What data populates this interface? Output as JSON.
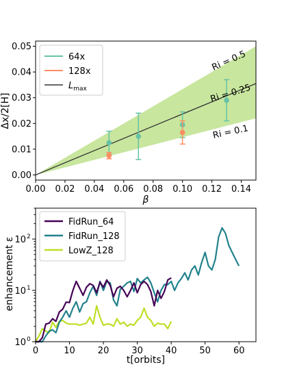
{
  "chart_data": [
    {
      "type": "scatter",
      "xlabel": "β",
      "ylabel": "Δx/2[H]",
      "xlim": [
        0.0,
        0.15
      ],
      "ylim": [
        -0.002,
        0.052
      ],
      "xticks": [
        "0.00",
        "0.02",
        "0.04",
        "0.06",
        "0.08",
        "0.10",
        "0.12",
        "0.14"
      ],
      "yticks": [
        "0.00",
        "0.01",
        "0.02",
        "0.03",
        "0.04",
        "0.05"
      ],
      "grid": false,
      "legend_position": "top-left",
      "legend": [
        "64x",
        "128x",
        "L_max"
      ],
      "legend_main_3": "L",
      "legend_sub_3": "max",
      "annotations": [
        "Ri = 0.5",
        "Ri = 0.25",
        "Ri = 0.1"
      ],
      "band": {
        "x": [
          0.0,
          0.15
        ],
        "lower": [
          0.0,
          0.022
        ],
        "upper": [
          0.0,
          0.05
        ],
        "color": "#b5de7e"
      },
      "line": {
        "x": [
          0.0,
          0.15
        ],
        "y": [
          0.0,
          0.0355
        ],
        "color": "#333333"
      },
      "series": [
        {
          "name": "64x",
          "color": "#66c2a5",
          "points": [
            {
              "x": 0.05,
              "y": 0.0125,
              "err": 0.0045
            },
            {
              "x": 0.07,
              "y": 0.015,
              "err": 0.009
            },
            {
              "x": 0.1,
              "y": 0.0195,
              "err": 0.005
            },
            {
              "x": 0.13,
              "y": 0.029,
              "err": 0.008
            }
          ]
        },
        {
          "name": "128x",
          "color": "#fc8d62",
          "points": [
            {
              "x": 0.05,
              "y": 0.0075,
              "err": 0.0012
            },
            {
              "x": 0.1,
              "y": 0.0165,
              "err": 0.0045
            }
          ]
        }
      ]
    },
    {
      "type": "line",
      "xlabel": "t[orbits]",
      "ylabel": "enhancement ε",
      "xlim": [
        0,
        65
      ],
      "ylim": [
        1,
        400
      ],
      "yscale": "log",
      "xticks": [
        "0",
        "10",
        "20",
        "30",
        "40",
        "50",
        "60"
      ],
      "ytick_base": [
        "10",
        "10",
        "10"
      ],
      "ytick_exp": [
        "0",
        "1",
        "2"
      ],
      "grid": false,
      "legend_position": "top-left",
      "series": [
        {
          "name": "FidRun_64",
          "color": "#440154",
          "x": [
            0,
            1,
            2,
            3,
            4,
            5,
            6,
            7,
            8,
            9,
            10,
            11,
            12,
            13,
            14,
            15,
            16,
            17,
            18,
            19,
            20,
            21,
            22,
            23,
            24,
            25,
            26,
            27,
            28,
            29,
            30,
            31,
            32,
            33,
            34,
            35,
            36,
            37,
            38,
            39,
            40
          ],
          "y": [
            1.0,
            1.0,
            1.2,
            2.2,
            2.3,
            2.8,
            2.5,
            3.8,
            4.3,
            5.9,
            5.8,
            10.0,
            15.0,
            11.0,
            8.0,
            11.5,
            13.5,
            12.5,
            9.0,
            14.5,
            11.5,
            16.0,
            12.5,
            7.5,
            11.0,
            12.0,
            10.0,
            7.5,
            10.0,
            14.0,
            9.0,
            13.0,
            15.0,
            13.0,
            9.5,
            5.0,
            10.0,
            7.0,
            9.5,
            16.0,
            17.5
          ]
        },
        {
          "name": "FidRun_128",
          "color": "#21818c",
          "x": [
            0,
            1,
            2,
            3,
            4,
            5,
            6,
            7,
            8,
            9,
            10,
            11,
            12,
            13,
            14,
            15,
            16,
            17,
            18,
            19,
            20,
            21,
            22,
            23,
            24,
            25,
            26,
            27,
            28,
            29,
            30,
            31,
            32,
            33,
            34,
            35,
            36,
            37,
            38,
            39,
            40,
            41,
            42,
            43,
            44,
            45,
            46,
            47,
            48,
            49,
            50,
            51,
            52,
            53,
            54,
            55,
            56,
            57,
            58,
            59,
            60
          ],
          "y": [
            1.0,
            1.0,
            1.0,
            1.3,
            1.6,
            1.7,
            1.5,
            2.4,
            3.0,
            4.0,
            3.0,
            4.5,
            6.0,
            3.8,
            5.5,
            6.0,
            9.0,
            12.0,
            8.0,
            15.0,
            10.0,
            15.0,
            14.0,
            6.5,
            5.0,
            10.5,
            12.0,
            14.0,
            15.0,
            9.5,
            17.0,
            14.0,
            16.0,
            18.0,
            14.0,
            9.0,
            6.0,
            10.0,
            13.0,
            13.0,
            15.0,
            10.0,
            14.0,
            17.0,
            22.0,
            16.0,
            25.0,
            30.0,
            20.0,
            35.0,
            55.0,
            30.0,
            25.0,
            40.0,
            110.0,
            165.0,
            130.0,
            75.0,
            55.0,
            40.0,
            30.0
          ]
        },
        {
          "name": "LowZ_128",
          "color": "#bddf26",
          "x": [
            0,
            1,
            2,
            3,
            4,
            5,
            6,
            7,
            8,
            9,
            10,
            11,
            12,
            13,
            14,
            15,
            16,
            17,
            18,
            19,
            20,
            21,
            22,
            23,
            24,
            25,
            26,
            27,
            28,
            29,
            30,
            31,
            32,
            33,
            34,
            35,
            36,
            37,
            38,
            39,
            40
          ],
          "y": [
            1.0,
            1.3,
            1.8,
            1.6,
            1.5,
            2.4,
            1.9,
            2.5,
            2.6,
            2.3,
            2.2,
            2.2,
            2.2,
            2.1,
            2.2,
            2.3,
            3.0,
            2.2,
            5.0,
            3.0,
            2.1,
            2.2,
            2.2,
            2.0,
            2.8,
            2.2,
            2.4,
            2.0,
            2.2,
            2.1,
            2.6,
            3.0,
            4.5,
            3.0,
            2.6,
            2.0,
            2.3,
            2.2,
            2.2,
            1.8,
            2.5
          ]
        }
      ]
    }
  ]
}
